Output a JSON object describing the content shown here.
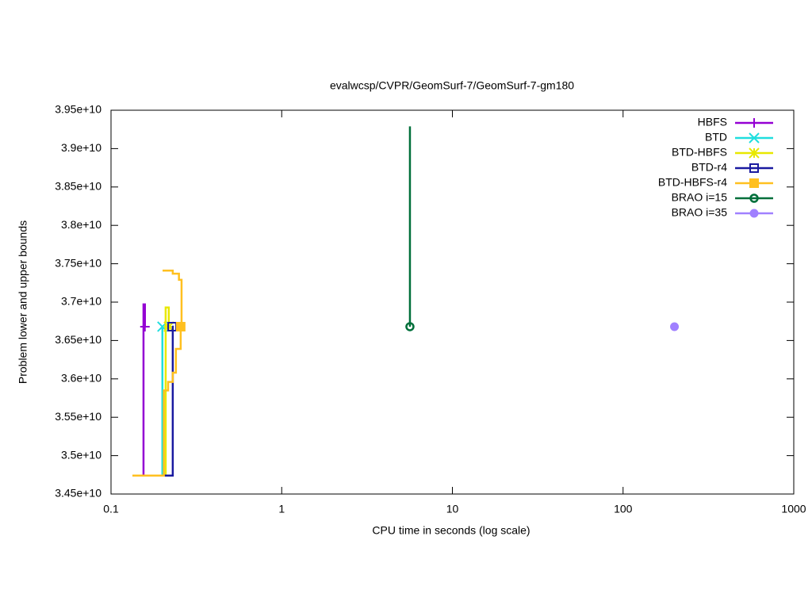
{
  "chart_data": {
    "type": "line",
    "title": "evalwcsp/CVPR/GeomSurf-7/GeomSurf-7-gm180",
    "x_label": "CPU time in seconds (log scale)",
    "y_label": "Problem lower and upper bounds",
    "xlog": true,
    "xlim": [
      0.1,
      1000
    ],
    "xticks": [
      0.1,
      1,
      10,
      100,
      1000
    ],
    "ylim": [
      34500000000,
      39500000000
    ],
    "yticks": [
      {
        "value": 34500000000,
        "label": "3.45e+10"
      },
      {
        "value": 35000000000,
        "label": "3.5e+10"
      },
      {
        "value": 35500000000,
        "label": "3.55e+10"
      },
      {
        "value": 36000000000,
        "label": "3.6e+10"
      },
      {
        "value": 36500000000,
        "label": "3.65e+10"
      },
      {
        "value": 37000000000,
        "label": "3.7e+10"
      },
      {
        "value": 37500000000,
        "label": "3.75e+10"
      },
      {
        "value": 38000000000,
        "label": "3.8e+10"
      },
      {
        "value": 38500000000,
        "label": "3.85e+10"
      },
      {
        "value": 39000000000,
        "label": "3.9e+10"
      },
      {
        "value": 39500000000,
        "label": "3.95e+10"
      }
    ],
    "legend": "top-right",
    "series": [
      {
        "name": "HBFS",
        "color": "#9400d3",
        "marker": "plus",
        "x": [
          0.1335,
          0.155,
          0.155,
          0.158,
          0.158
        ],
        "values": [
          34740000000,
          34740000000,
          36970000000,
          36970000000,
          36680000000
        ]
      },
      {
        "name": "BTD",
        "color": "#20dede",
        "marker": "cross",
        "x": [
          0.147,
          0.2,
          0.2,
          0.2
        ],
        "values": [
          34740000000,
          34740000000,
          35850000000,
          36680000000
        ]
      },
      {
        "name": "BTD-HBFS",
        "color": "#e8e800",
        "marker": "star",
        "x": [
          0.147,
          0.209,
          0.209,
          0.218,
          0.218
        ],
        "values": [
          34740000000,
          34740000000,
          36930000000,
          36930000000,
          36680000000
        ]
      },
      {
        "name": "BTD-r4",
        "color": "#1a1aa0",
        "marker": "square",
        "x": [
          0.2,
          0.23,
          0.23,
          0.228
        ],
        "values": [
          34740000000,
          34740000000,
          36680000000,
          36680000000
        ]
      },
      {
        "name": "BTD-HBFS-r4",
        "color": "#ffc020",
        "marker": "filled-square",
        "x": [
          0.2005,
          0.23,
          0.23,
          0.25,
          0.25,
          0.259,
          0.259,
          null,
          0.1335,
          0.204,
          0.204,
          0.216,
          0.216,
          0.23,
          0.23,
          0.24,
          0.24,
          0.256,
          0.256
        ],
        "values": [
          37410000000,
          37410000000,
          37370000000,
          37370000000,
          37290000000,
          37290000000,
          36680000000,
          null,
          34740000000,
          34740000000,
          35850000000,
          35850000000,
          35960000000,
          35960000000,
          36080000000,
          36080000000,
          36390000000,
          36390000000,
          36680000000
        ]
      },
      {
        "name": "BRAO i=15",
        "color": "#006f3a",
        "marker": "circle",
        "x": [
          5.64,
          5.64
        ],
        "values": [
          39290000000,
          36680000000
        ]
      },
      {
        "name": "BRAO i=35",
        "color": "#a080ff",
        "marker": "filled-circle",
        "x": [
          200
        ],
        "values": [
          36680000000
        ]
      }
    ]
  }
}
